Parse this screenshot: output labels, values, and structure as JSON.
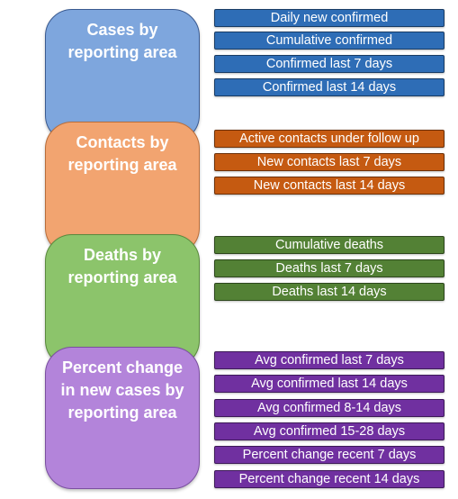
{
  "colors": {
    "cases": "#7ea6dd",
    "contacts": "#f2a470",
    "deaths": "#8cc46b",
    "percent": "#b384da",
    "cases_item": "#2e6db6",
    "contacts_item": "#c55a11",
    "deaths_item": "#538135",
    "percent_item": "#7030a0"
  },
  "categories": [
    {
      "lines": [
        "Cases by",
        "reporting area"
      ]
    },
    {
      "lines": [
        "Contacts by",
        "reporting area"
      ]
    },
    {
      "lines": [
        "Deaths by",
        "reporting area"
      ]
    },
    {
      "lines": [
        "Percent change",
        "in new cases by",
        "reporting area"
      ]
    }
  ],
  "items": {
    "cases": [
      "Daily new confirmed",
      "Cumulative confirmed",
      "Confirmed last 7 days",
      "Confirmed last 14 days"
    ],
    "contacts": [
      "Active contacts under follow up",
      "New contacts last 7 days",
      "New contacts last 14 days"
    ],
    "deaths": [
      "Cumulative deaths",
      "Deaths last 7 days",
      "Deaths last 14 days"
    ],
    "percent": [
      "Avg confirmed last 7 days",
      "Avg confirmed last 14 days",
      "Avg confirmed 8-14 days",
      "Avg confirmed 15-28 days",
      "Percent change recent 7 days",
      "Percent change recent 14 days"
    ]
  }
}
